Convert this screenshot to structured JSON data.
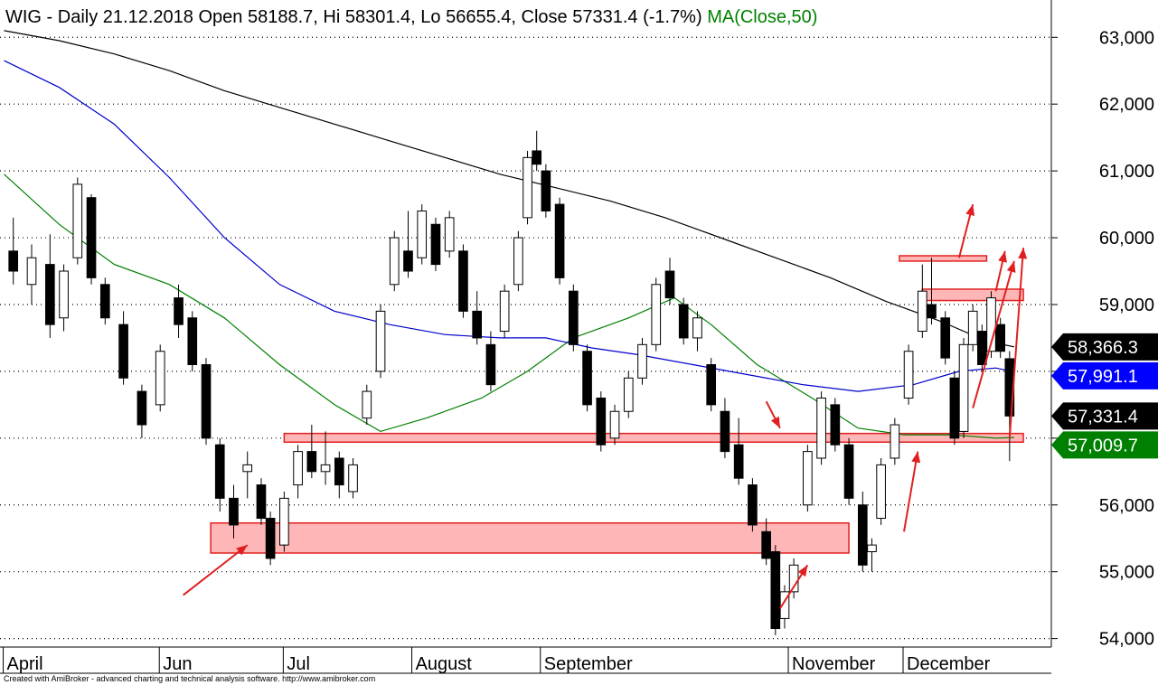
{
  "header": {
    "symbol": "WIG",
    "period": "Daily",
    "date": "21.12.2018",
    "open_label": "Open",
    "open": "58188.7",
    "hi_label": "Hi",
    "hi": "58301.4",
    "lo_label": "Lo",
    "lo": "56655.4",
    "close_label": "Close",
    "close": "57331.4",
    "change": "(-1.7%)",
    "ma_label": "MA(Close,50)"
  },
  "footer": "Created with AmiBroker - advanced charting and technical analysis software. http://www.amibroker.com",
  "colors": {
    "ma50": "#008000",
    "ma100": "#0000cc",
    "ma200": "#000000",
    "zone_fill": "#ffb6b6",
    "zone_stroke": "#e02020",
    "arrow": "#e02020",
    "close_tag": "#000000",
    "ma200_tag": "#000000",
    "ma100_tag": "#0000ff",
    "ma50_tag": "#008000"
  },
  "chart_data": {
    "type": "candlestick",
    "ylim": [
      53900,
      63450
    ],
    "y_ticks": [
      {
        "value": 54000,
        "label": "54,000"
      },
      {
        "value": 55000,
        "label": "55,000"
      },
      {
        "value": 56000,
        "label": "56,000"
      },
      {
        "value": 57000,
        "label": "57,000"
      },
      {
        "value": 58000,
        "label": "58,000"
      },
      {
        "value": 59000,
        "label": "59,000"
      },
      {
        "value": 60000,
        "label": "60,000"
      },
      {
        "value": 61000,
        "label": "61,000"
      },
      {
        "value": 62000,
        "label": "62,000"
      },
      {
        "value": 63000,
        "label": "63,000"
      }
    ],
    "x_labels": [
      {
        "label": "April",
        "bar": 0
      },
      {
        "label": "Jun",
        "bar": 34
      },
      {
        "label": "Jul",
        "bar": 61
      },
      {
        "label": "August",
        "bar": 89
      },
      {
        "label": "September",
        "bar": 117
      },
      {
        "label": "November",
        "bar": 171
      },
      {
        "label": "December",
        "bar": 196
      }
    ],
    "bar_count": 228,
    "candles": [
      {
        "bar": 2,
        "o": 59800,
        "h": 60300,
        "l": 59300,
        "c": 59500
      },
      {
        "bar": 6,
        "o": 59300,
        "h": 59900,
        "l": 59000,
        "c": 59700
      },
      {
        "bar": 10,
        "o": 59600,
        "h": 60050,
        "l": 58500,
        "c": 58700
      },
      {
        "bar": 13,
        "o": 58800,
        "h": 59600,
        "l": 58600,
        "c": 59500
      },
      {
        "bar": 16,
        "o": 59700,
        "h": 60900,
        "l": 59600,
        "c": 60800
      },
      {
        "bar": 19,
        "o": 60600,
        "h": 60650,
        "l": 59300,
        "c": 59400
      },
      {
        "bar": 22,
        "o": 59300,
        "h": 59400,
        "l": 58700,
        "c": 58800
      },
      {
        "bar": 26,
        "o": 58700,
        "h": 58900,
        "l": 57800,
        "c": 57900
      },
      {
        "bar": 30,
        "o": 57700,
        "h": 57800,
        "l": 57000,
        "c": 57200
      },
      {
        "bar": 34,
        "o": 57500,
        "h": 58400,
        "l": 57400,
        "c": 58300
      },
      {
        "bar": 38,
        "o": 59100,
        "h": 59300,
        "l": 58500,
        "c": 58700
      },
      {
        "bar": 41,
        "o": 58800,
        "h": 58900,
        "l": 58000,
        "c": 58100
      },
      {
        "bar": 44,
        "o": 58100,
        "h": 58200,
        "l": 56900,
        "c": 57000
      },
      {
        "bar": 47,
        "o": 56900,
        "h": 57000,
        "l": 55900,
        "c": 56100
      },
      {
        "bar": 50,
        "o": 56100,
        "h": 56300,
        "l": 55500,
        "c": 55700
      },
      {
        "bar": 53,
        "o": 56500,
        "h": 56800,
        "l": 56100,
        "c": 56600
      },
      {
        "bar": 56,
        "o": 56300,
        "h": 56400,
        "l": 55700,
        "c": 55800
      },
      {
        "bar": 58,
        "o": 55800,
        "h": 55900,
        "l": 55100,
        "c": 55200
      },
      {
        "bar": 61,
        "o": 55400,
        "h": 56200,
        "l": 55300,
        "c": 56100
      },
      {
        "bar": 64,
        "o": 56300,
        "h": 56900,
        "l": 56100,
        "c": 56800
      },
      {
        "bar": 67,
        "o": 56800,
        "h": 57200,
        "l": 56400,
        "c": 56500
      },
      {
        "bar": 70,
        "o": 56500,
        "h": 57100,
        "l": 56300,
        "c": 56600
      },
      {
        "bar": 73,
        "o": 56700,
        "h": 56800,
        "l": 56100,
        "c": 56300
      },
      {
        "bar": 76,
        "o": 56200,
        "h": 56700,
        "l": 56100,
        "c": 56600
      },
      {
        "bar": 79,
        "o": 57300,
        "h": 57800,
        "l": 57200,
        "c": 57700
      },
      {
        "bar": 82,
        "o": 58000,
        "h": 59000,
        "l": 57900,
        "c": 58900
      },
      {
        "bar": 85,
        "o": 59300,
        "h": 60100,
        "l": 59200,
        "c": 60000
      },
      {
        "bar": 88,
        "o": 59800,
        "h": 60400,
        "l": 59400,
        "c": 59500
      },
      {
        "bar": 91,
        "o": 59700,
        "h": 60500,
        "l": 59600,
        "c": 60400
      },
      {
        "bar": 94,
        "o": 60200,
        "h": 60300,
        "l": 59500,
        "c": 59600
      },
      {
        "bar": 97,
        "o": 59800,
        "h": 60400,
        "l": 59700,
        "c": 60300
      },
      {
        "bar": 100,
        "o": 59800,
        "h": 59900,
        "l": 58800,
        "c": 58900
      },
      {
        "bar": 103,
        "o": 58900,
        "h": 59200,
        "l": 58400,
        "c": 58500
      },
      {
        "bar": 106,
        "o": 58400,
        "h": 58600,
        "l": 57700,
        "c": 57800
      },
      {
        "bar": 109,
        "o": 58600,
        "h": 59300,
        "l": 58500,
        "c": 59200
      },
      {
        "bar": 112,
        "o": 59300,
        "h": 60100,
        "l": 59200,
        "c": 60000
      },
      {
        "bar": 114,
        "o": 60300,
        "h": 61300,
        "l": 60200,
        "c": 61200
      },
      {
        "bar": 116,
        "o": 61300,
        "h": 61600,
        "l": 61000,
        "c": 61100
      },
      {
        "bar": 118,
        "o": 61000,
        "h": 61100,
        "l": 60300,
        "c": 60400
      },
      {
        "bar": 121,
        "o": 60500,
        "h": 60600,
        "l": 59300,
        "c": 59400
      },
      {
        "bar": 124,
        "o": 59200,
        "h": 59300,
        "l": 58300,
        "c": 58400
      },
      {
        "bar": 127,
        "o": 58300,
        "h": 58400,
        "l": 57400,
        "c": 57500
      },
      {
        "bar": 130,
        "o": 57600,
        "h": 57700,
        "l": 56800,
        "c": 56900
      },
      {
        "bar": 133,
        "o": 57000,
        "h": 57500,
        "l": 56900,
        "c": 57400
      },
      {
        "bar": 136,
        "o": 57400,
        "h": 58000,
        "l": 57300,
        "c": 57900
      },
      {
        "bar": 139,
        "o": 57900,
        "h": 58500,
        "l": 57800,
        "c": 58400
      },
      {
        "bar": 142,
        "o": 58400,
        "h": 59400,
        "l": 58300,
        "c": 59300
      },
      {
        "bar": 145,
        "o": 59500,
        "h": 59700,
        "l": 59000,
        "c": 59100
      },
      {
        "bar": 148,
        "o": 59000,
        "h": 59100,
        "l": 58400,
        "c": 58500
      },
      {
        "bar": 151,
        "o": 58500,
        "h": 58900,
        "l": 58300,
        "c": 58800
      },
      {
        "bar": 154,
        "o": 58100,
        "h": 58200,
        "l": 57400,
        "c": 57500
      },
      {
        "bar": 157,
        "o": 57400,
        "h": 57600,
        "l": 56700,
        "c": 56800
      },
      {
        "bar": 160,
        "o": 56900,
        "h": 57300,
        "l": 56300,
        "c": 56400
      },
      {
        "bar": 163,
        "o": 56300,
        "h": 56400,
        "l": 55600,
        "c": 55700
      },
      {
        "bar": 166,
        "o": 55600,
        "h": 55800,
        "l": 55100,
        "c": 55200
      },
      {
        "bar": 168,
        "o": 55300,
        "h": 55400,
        "l": 54050,
        "c": 54150
      },
      {
        "bar": 170,
        "o": 54300,
        "h": 54800,
        "l": 54150,
        "c": 54700
      },
      {
        "bar": 172,
        "o": 54700,
        "h": 55200,
        "l": 54600,
        "c": 55100
      },
      {
        "bar": 175,
        "o": 56000,
        "h": 56900,
        "l": 55900,
        "c": 56800
      },
      {
        "bar": 178,
        "o": 56700,
        "h": 57700,
        "l": 56600,
        "c": 57600
      },
      {
        "bar": 181,
        "o": 57500,
        "h": 57600,
        "l": 56800,
        "c": 56900
      },
      {
        "bar": 184,
        "o": 56900,
        "h": 57000,
        "l": 56000,
        "c": 56100
      },
      {
        "bar": 187,
        "o": 56000,
        "h": 56200,
        "l": 55000,
        "c": 55100
      },
      {
        "bar": 189,
        "o": 55300,
        "h": 55500,
        "l": 55000,
        "c": 55400
      },
      {
        "bar": 191,
        "o": 55800,
        "h": 56700,
        "l": 55700,
        "c": 56600
      },
      {
        "bar": 194,
        "o": 56700,
        "h": 57300,
        "l": 56600,
        "c": 57200
      },
      {
        "bar": 197,
        "o": 57600,
        "h": 58400,
        "l": 57500,
        "c": 58300
      },
      {
        "bar": 200,
        "o": 58600,
        "h": 59600,
        "l": 58500,
        "c": 59200
      },
      {
        "bar": 202,
        "o": 59000,
        "h": 59700,
        "l": 58700,
        "c": 58800
      },
      {
        "bar": 205,
        "o": 58800,
        "h": 58900,
        "l": 58100,
        "c": 58200
      },
      {
        "bar": 207,
        "o": 57900,
        "h": 58000,
        "l": 56900,
        "c": 57000
      },
      {
        "bar": 209,
        "o": 57100,
        "h": 58500,
        "l": 57000,
        "c": 58400
      },
      {
        "bar": 211,
        "o": 58400,
        "h": 59000,
        "l": 58300,
        "c": 58900
      },
      {
        "bar": 213,
        "o": 58600,
        "h": 58700,
        "l": 58000,
        "c": 58100
      },
      {
        "bar": 215,
        "o": 58300,
        "h": 59200,
        "l": 58200,
        "c": 59100
      },
      {
        "bar": 217,
        "o": 58700,
        "h": 58800,
        "l": 58200,
        "c": 58300
      },
      {
        "bar": 219,
        "o": 58188.7,
        "h": 58301.4,
        "l": 56655.4,
        "c": 57331.4
      }
    ],
    "series": [
      {
        "name": "MA(Close,50)",
        "color": "#008000",
        "points": [
          [
            0,
            60950
          ],
          [
            12,
            60200
          ],
          [
            24,
            59600
          ],
          [
            36,
            59300
          ],
          [
            48,
            58800
          ],
          [
            60,
            58100
          ],
          [
            72,
            57500
          ],
          [
            82,
            57100
          ],
          [
            92,
            57300
          ],
          [
            104,
            57600
          ],
          [
            114,
            58000
          ],
          [
            124,
            58500
          ],
          [
            136,
            58800
          ],
          [
            146,
            59100
          ],
          [
            154,
            58700
          ],
          [
            164,
            58100
          ],
          [
            176,
            57600
          ],
          [
            186,
            57150
          ],
          [
            196,
            57050
          ],
          [
            206,
            57050
          ],
          [
            216,
            57000
          ],
          [
            220,
            57010
          ]
        ]
      },
      {
        "name": "",
        "color": "#0000cc",
        "points": [
          [
            0,
            62650
          ],
          [
            12,
            62250
          ],
          [
            24,
            61700
          ],
          [
            36,
            60900
          ],
          [
            48,
            60000
          ],
          [
            60,
            59300
          ],
          [
            72,
            58900
          ],
          [
            84,
            58700
          ],
          [
            96,
            58550
          ],
          [
            108,
            58500
          ],
          [
            118,
            58500
          ],
          [
            128,
            58350
          ],
          [
            138,
            58250
          ],
          [
            150,
            58100
          ],
          [
            162,
            57950
          ],
          [
            174,
            57800
          ],
          [
            186,
            57700
          ],
          [
            198,
            57800
          ],
          [
            208,
            58000
          ],
          [
            216,
            58050
          ],
          [
            220,
            57990
          ]
        ]
      },
      {
        "name": "",
        "color": "#000000",
        "points": [
          [
            0,
            63100
          ],
          [
            12,
            62950
          ],
          [
            24,
            62750
          ],
          [
            36,
            62500
          ],
          [
            48,
            62200
          ],
          [
            60,
            61950
          ],
          [
            72,
            61700
          ],
          [
            84,
            61450
          ],
          [
            96,
            61200
          ],
          [
            108,
            60950
          ],
          [
            120,
            60750
          ],
          [
            132,
            60550
          ],
          [
            144,
            60300
          ],
          [
            156,
            60000
          ],
          [
            168,
            59700
          ],
          [
            180,
            59400
          ],
          [
            192,
            59050
          ],
          [
            204,
            58750
          ],
          [
            214,
            58450
          ],
          [
            220,
            58366
          ]
        ]
      }
    ],
    "value_tags": [
      {
        "label": "58,366.3",
        "value": 58366.3,
        "color": "#000000"
      },
      {
        "label": "57,991.1",
        "value": 57991.1,
        "color": "#0000ff"
      },
      {
        "label": "57,331.4",
        "value": 57331.4,
        "color": "#000000"
      },
      {
        "label": "57,009.7",
        "value": 57009.7,
        "color": "#008000"
      }
    ],
    "zones": [
      {
        "name": "support-zone-low",
        "bar_from": 45,
        "bar_to": 184,
        "y_low": 55280,
        "y_high": 55730
      },
      {
        "name": "support-zone-57000",
        "bar_from": 61,
        "bar_to": 222,
        "y_low": 56940,
        "y_high": 57070
      },
      {
        "name": "resistance-zone-59100",
        "bar_from": 200,
        "bar_to": 222,
        "y_low": 59060,
        "y_high": 59230
      },
      {
        "name": "resistance-zone-59700",
        "bar_from": 195,
        "bar_to": 214,
        "y_low": 59650,
        "y_high": 59730
      }
    ],
    "arrows": [
      {
        "bar_from": 39,
        "v_from": 54650,
        "bar_to": 53,
        "v_to": 55400
      },
      {
        "bar_from": 169,
        "v_from": 54450,
        "bar_to": 175,
        "v_to": 55100
      },
      {
        "bar_from": 166,
        "v_from": 57550,
        "bar_to": 169,
        "v_to": 57150
      },
      {
        "bar_from": 196,
        "v_from": 55600,
        "bar_to": 199,
        "v_to": 56800
      },
      {
        "bar_from": 211,
        "v_from": 57450,
        "bar_to": 220,
        "v_to": 59650
      },
      {
        "bar_from": 208,
        "v_from": 59700,
        "bar_to": 211,
        "v_to": 60500
      },
      {
        "bar_from": 216,
        "v_from": 59200,
        "bar_to": 218,
        "v_to": 59800
      },
      {
        "bar_from": 219,
        "v_from": 57000,
        "bar_to": 222,
        "v_to": 59850
      }
    ]
  }
}
